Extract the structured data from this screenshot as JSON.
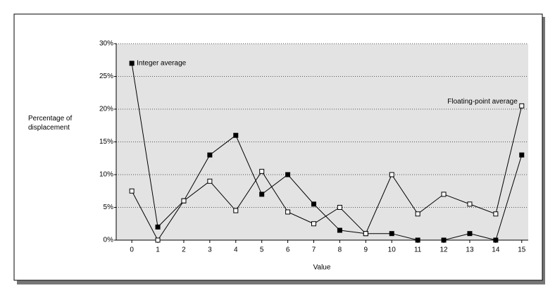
{
  "chart_data": {
    "type": "line",
    "xlabel": "Value",
    "ylabel": "Percentage of displacement",
    "x": [
      0,
      1,
      2,
      3,
      4,
      5,
      6,
      7,
      8,
      9,
      10,
      11,
      12,
      13,
      14,
      15
    ],
    "series": [
      {
        "name": "Integer average",
        "color": "#000000",
        "marker": "filled",
        "values": [
          27,
          2,
          6,
          13,
          16,
          7,
          10,
          5.5,
          1.5,
          1,
          1,
          0,
          0,
          1,
          0,
          13
        ]
      },
      {
        "name": "Floating-point average",
        "color": "#000000",
        "marker": "open",
        "values": [
          7.5,
          0,
          6,
          9,
          4.5,
          10.5,
          4.3,
          2.5,
          5,
          1,
          10,
          4,
          7,
          5.5,
          4,
          20.5
        ]
      }
    ],
    "xlim": [
      -0.6,
      15.25
    ],
    "xticks": [
      0,
      1,
      2,
      3,
      4,
      5,
      6,
      7,
      8,
      9,
      10,
      11,
      12,
      13,
      14,
      15
    ],
    "ylim": [
      0,
      30
    ],
    "yticks": [
      {
        "value": 0,
        "label": "0%"
      },
      {
        "value": 5,
        "label": "5%"
      },
      {
        "value": 10,
        "label": "10%"
      },
      {
        "value": 15,
        "label": "15%"
      },
      {
        "value": 20,
        "label": "20%"
      },
      {
        "value": 25,
        "label": "25%"
      },
      {
        "value": 30,
        "label": "30%"
      }
    ],
    "grid": true,
    "plot_background": "#e3e3e3"
  }
}
